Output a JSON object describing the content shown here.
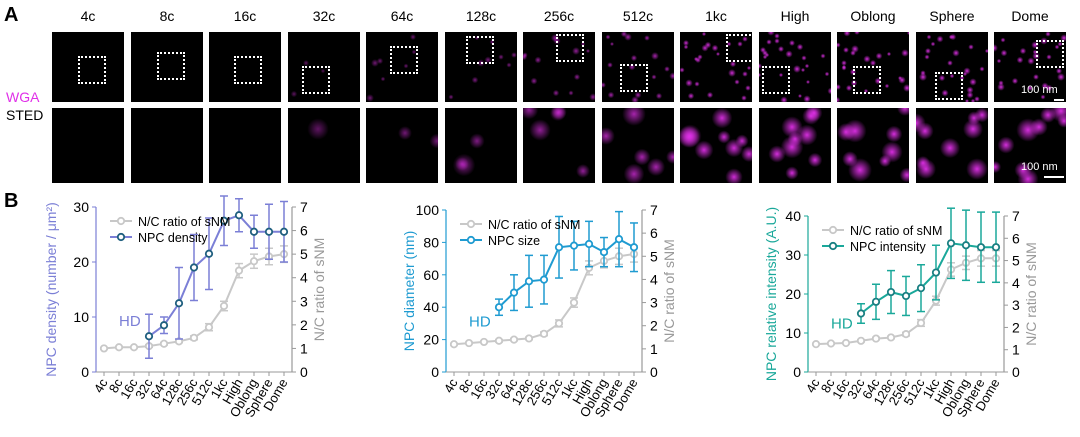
{
  "panel_a": {
    "letter": "A",
    "stages": [
      "4c",
      "8c",
      "16c",
      "32c",
      "64c",
      "128c",
      "256c",
      "512c",
      "1kc",
      "High",
      "Oblong",
      "Sphere",
      "Dome"
    ],
    "row_labels": {
      "top_line1": "WGA",
      "top_line2": "STED"
    },
    "scale_label_top": "100 nm",
    "scale_label_bottom": "100 nm",
    "signal_level": [
      0.0,
      0.0,
      0.0,
      0.12,
      0.25,
      0.35,
      0.5,
      0.65,
      0.95,
      1.0,
      1.0,
      1.0,
      1.0
    ],
    "colors": {
      "wga": "#e030e8",
      "tile_bg": "#000000",
      "roi": "#ffffff"
    }
  },
  "panel_b": {
    "letter": "B"
  },
  "chart_data": [
    {
      "type": "line",
      "categories": [
        "4c",
        "8c",
        "16c",
        "32c",
        "64c",
        "128c",
        "256c",
        "512c",
        "1kc",
        "High",
        "Oblong",
        "Sphere",
        "Dome"
      ],
      "ylabel": "NPC density (number / μm²)",
      "ylabel_right": "N/C ratio of sNM",
      "ylim": [
        0,
        30
      ],
      "y_ticks": [
        0,
        10,
        20,
        30
      ],
      "ylim_right": [
        0,
        7
      ],
      "y_ticks_right": [
        0,
        1,
        2,
        3,
        4,
        5,
        6,
        7
      ],
      "annotation": "HD",
      "primary_color": "#7b7fd6",
      "series": [
        {
          "name": "N/C ratio of sNM",
          "axis": "right",
          "color": "#c8c8c8",
          "values": [
            1.0,
            1.05,
            1.05,
            1.1,
            1.2,
            1.3,
            1.45,
            1.9,
            2.8,
            4.3,
            4.7,
            4.9,
            5.0
          ],
          "errors": [
            0.03,
            0.03,
            0.03,
            0.05,
            0.05,
            0.05,
            0.08,
            0.15,
            0.2,
            0.3,
            0.3,
            0.35,
            0.35
          ]
        },
        {
          "name": "NPC density",
          "axis": "left",
          "color": "#1f5f7f",
          "values": [
            null,
            null,
            null,
            6.5,
            8.5,
            12.5,
            19.0,
            21.5,
            27.5,
            28.5,
            25.5,
            25.5,
            25.5
          ],
          "errors": [
            null,
            null,
            null,
            4.0,
            1.5,
            6.5,
            6.0,
            6.5,
            4.5,
            3.0,
            3.0,
            5.0,
            5.5
          ]
        }
      ]
    },
    {
      "type": "line",
      "categories": [
        "4c",
        "8c",
        "16c",
        "32c",
        "64c",
        "128c",
        "256c",
        "512c",
        "1kc",
        "High",
        "Oblong",
        "Sphere",
        "Dome"
      ],
      "ylabel": "NPC diameter (nm)",
      "ylabel_right": "N/C ratio of sNM",
      "ylim": [
        0,
        100
      ],
      "y_ticks": [
        0,
        20,
        40,
        60,
        80,
        100
      ],
      "ylim_right": [
        0,
        7
      ],
      "y_ticks_right": [
        0,
        1,
        2,
        3,
        4,
        5,
        6,
        7
      ],
      "annotation": "HD",
      "primary_color": "#1f9bd1",
      "series": [
        {
          "name": "N/C ratio of sNM",
          "axis": "right",
          "color": "#c8c8c8",
          "values": [
            1.2,
            1.25,
            1.3,
            1.35,
            1.4,
            1.45,
            1.65,
            2.1,
            3.0,
            4.5,
            4.8,
            5.0,
            5.1
          ],
          "errors": [
            0.03,
            0.03,
            0.03,
            0.05,
            0.05,
            0.05,
            0.08,
            0.15,
            0.2,
            0.3,
            0.3,
            0.35,
            0.35
          ]
        },
        {
          "name": "NPC size",
          "axis": "left",
          "color": "#1f9bd1",
          "values": [
            null,
            null,
            null,
            40,
            49,
            56,
            57,
            77,
            78,
            79,
            74,
            82,
            77
          ],
          "errors": [
            null,
            null,
            null,
            5,
            11,
            16,
            15,
            19,
            15,
            14,
            9,
            17,
            15
          ]
        }
      ]
    },
    {
      "type": "line",
      "categories": [
        "4c",
        "8c",
        "16c",
        "32c",
        "64c",
        "128c",
        "256c",
        "512c",
        "1kc",
        "High",
        "Oblong",
        "Sphere",
        "Dome"
      ],
      "ylabel": "NPC relative intensity (A.U.)",
      "ylabel_right": "N/C ratio of sNM",
      "ylim": [
        0,
        40
      ],
      "y_ticks": [
        0,
        10,
        20,
        30,
        40
      ],
      "ylim_right": [
        0,
        7
      ],
      "y_ticks_right": [
        0,
        1,
        2,
        3,
        4,
        5,
        6,
        7
      ],
      "annotation": "HD",
      "primary_color": "#1aa89a",
      "series": [
        {
          "name": "N/C ratio of sNM",
          "axis": "right",
          "color": "#c8c8c8",
          "values": [
            1.25,
            1.28,
            1.3,
            1.4,
            1.5,
            1.55,
            1.7,
            2.2,
            3.2,
            4.6,
            4.9,
            5.1,
            5.1
          ],
          "errors": [
            0.03,
            0.03,
            0.03,
            0.05,
            0.05,
            0.05,
            0.08,
            0.15,
            0.2,
            0.3,
            0.3,
            0.35,
            0.35
          ]
        },
        {
          "name": "NPC intensity",
          "axis": "left",
          "color": "#1a7f82",
          "values": [
            null,
            null,
            null,
            15,
            18,
            20.5,
            19.5,
            21.5,
            25.5,
            33,
            32.5,
            32,
            32
          ],
          "errors": [
            null,
            null,
            null,
            2.5,
            4.5,
            5.5,
            5,
            6,
            7,
            9,
            9,
            9,
            9
          ]
        }
      ]
    }
  ]
}
